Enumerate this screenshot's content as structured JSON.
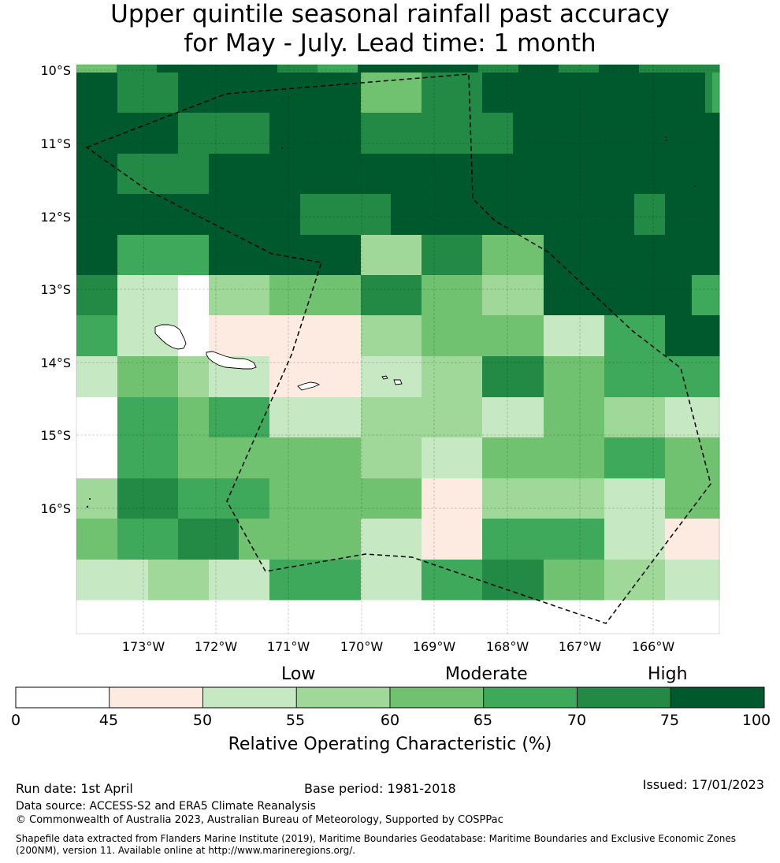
{
  "title": {
    "line1": "Upper quintile seasonal rainfall past accuracy",
    "line2": "for May - July. Lead time: 1 month"
  },
  "map": {
    "lat_labels": [
      "10°S",
      "11°S",
      "12°S",
      "13°S",
      "14°S",
      "15°S",
      "16°S"
    ],
    "lon_labels": [
      "173°W",
      "172°W",
      "171°W",
      "170°W",
      "169°W",
      "168°W",
      "167°W",
      "166°W"
    ],
    "lat_range": [
      -17.75,
      -9.9
    ],
    "lon_range": [
      -174.0,
      -165.15
    ],
    "class_colors": [
      "#ffffff",
      "#fdeae1",
      "#c6e8c2",
      "#a0d899",
      "#70c270",
      "#3ea95a",
      "#228a44",
      "#00592d"
    ],
    "grid_classes": [
      [
        4,
        6,
        7,
        7,
        7,
        6,
        5,
        7,
        7,
        7,
        6,
        7,
        6,
        7,
        6,
        6
      ],
      [
        7,
        7,
        6,
        6,
        7,
        7,
        7,
        7,
        7,
        7,
        4,
        4,
        6,
        6,
        7,
        7,
        7,
        7,
        7,
        7,
        7,
        7,
        7,
        6,
        5,
        5
      ],
      [
        7,
        7,
        7,
        7,
        6,
        6,
        6,
        7,
        7,
        7,
        6,
        6,
        6,
        6,
        6,
        7,
        7,
        7,
        7,
        7,
        7,
        7,
        7,
        7,
        7,
        7
      ],
      [
        7,
        7,
        6,
        6,
        6,
        7,
        7,
        7,
        7,
        7,
        7,
        7,
        7,
        7,
        7,
        7,
        7,
        7,
        7,
        7,
        7,
        7,
        7,
        7,
        7,
        7
      ],
      [
        7,
        7,
        7,
        7,
        7,
        7,
        7,
        7,
        6,
        6,
        6,
        7,
        7,
        7,
        7,
        7,
        7,
        7,
        7,
        6,
        7,
        7,
        7,
        7,
        7,
        7
      ],
      [
        7,
        7,
        5,
        5,
        5,
        7,
        7,
        7,
        7,
        7,
        3,
        3,
        6,
        6,
        4,
        4,
        7,
        7,
        7,
        7,
        7,
        7,
        7,
        7,
        7,
        7
      ],
      [
        6,
        6,
        2,
        2,
        0,
        3,
        3,
        4,
        4,
        4,
        6,
        6,
        4,
        4,
        3,
        3,
        7,
        7,
        7,
        7,
        7,
        7,
        5,
        5,
        5,
        5
      ],
      [
        5,
        5,
        2,
        2,
        0,
        1,
        1,
        1,
        1,
        1,
        3,
        3,
        4,
        4,
        4,
        4,
        2,
        2,
        5,
        5,
        7,
        7,
        7,
        7,
        7,
        7
      ],
      [
        2,
        2,
        4,
        4,
        3,
        2,
        2,
        1,
        1,
        1,
        2,
        2,
        3,
        3,
        6,
        6,
        4,
        4,
        5,
        5,
        5,
        5,
        5,
        5,
        5,
        5
      ],
      [
        0,
        0,
        5,
        5,
        4,
        5,
        5,
        2,
        2,
        2,
        3,
        3,
        3,
        3,
        2,
        2,
        4,
        4,
        3,
        3,
        2,
        2,
        2,
        2,
        2,
        2
      ],
      [
        0,
        0,
        5,
        5,
        4,
        4,
        4,
        4,
        4,
        4,
        3,
        3,
        2,
        2,
        4,
        4,
        4,
        4,
        5,
        5,
        4,
        4,
        4,
        4,
        4,
        4
      ],
      [
        3,
        3,
        6,
        6,
        5,
        5,
        5,
        4,
        4,
        4,
        4,
        4,
        1,
        1,
        3,
        3,
        3,
        3,
        2,
        2,
        4,
        4,
        4,
        4,
        4,
        4
      ],
      [
        4,
        4,
        5,
        5,
        6,
        6,
        4,
        4,
        4,
        4,
        2,
        2,
        1,
        1,
        5,
        5,
        5,
        5,
        2,
        2,
        1,
        1,
        1,
        1,
        1,
        1
      ],
      [
        2,
        2,
        2,
        3,
        3,
        2,
        2,
        5,
        5,
        5,
        2,
        2,
        5,
        5,
        6,
        6,
        4,
        4,
        3,
        3,
        2,
        2,
        2,
        2,
        2,
        2
      ]
    ]
  },
  "legend": {
    "categories": [
      "Low",
      "Moderate",
      "High"
    ],
    "bounds": [
      0,
      45,
      50,
      55,
      60,
      65,
      70,
      75,
      100
    ],
    "label": "Relative Operating Characteristic (%)"
  },
  "footer": {
    "run_date": "Run date: 1st April",
    "base_period": "Base period: 1981-2018",
    "issued": "Issued: 17/01/2023",
    "data_source": "Data source: ACCESS-S2 and ERA5 Climate Reanalysis",
    "copyright": "© Commonwealth of Australia 2023, Australian Bureau of Meteorology, Supported by COSPPac",
    "shapefile_line1": "Shapefile data extracted from Flanders Marine Institute (2019), Maritime Boundaries Geodatabase: Maritime Boundaries and Exclusive Economic Zones",
    "shapefile_line2": "(200NM), version 11. Available online at http://www.marineregions.org/."
  }
}
